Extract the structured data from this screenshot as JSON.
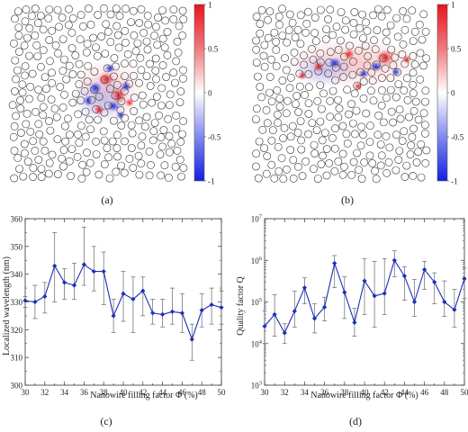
{
  "figure": {
    "panels": [
      {
        "label": "(a)",
        "type": "field-map",
        "colorbar": {
          "ticks": [
            "1",
            "0.5",
            "0",
            "-0.5",
            "-1"
          ],
          "values": [
            1,
            0.5,
            0,
            -0.5,
            -1
          ]
        },
        "colors": {
          "positive": "#e8141b",
          "negative": "#1020e0",
          "zero": "#ffffff"
        }
      },
      {
        "label": "(b)",
        "type": "field-map",
        "colorbar": {
          "ticks": [
            "1",
            "0.5",
            "0",
            "-0.5",
            "-1"
          ],
          "values": [
            1,
            0.5,
            0,
            -0.5,
            -1
          ]
        },
        "colors": {
          "positive": "#e8141b",
          "negative": "#1020e0",
          "zero": "#ffffff"
        }
      }
    ]
  },
  "chart_data": [
    {
      "label": "(c)",
      "type": "line",
      "xlabel": "Nanowire filling factor Φ (%)",
      "ylabel": "Localized wavelength (nm)",
      "xlim": [
        30,
        50
      ],
      "ylim": [
        300,
        360
      ],
      "xticks": [
        30,
        32,
        34,
        36,
        38,
        40,
        42,
        44,
        46,
        48,
        50
      ],
      "yticks": [
        300,
        310,
        320,
        330,
        340,
        350,
        360
      ],
      "grid": false,
      "color": "#1c2fb5",
      "series": [
        {
          "x": [
            30,
            31,
            32,
            33,
            34,
            35,
            36,
            37,
            38,
            39,
            40,
            41,
            42,
            43,
            44,
            45,
            46,
            47,
            48,
            49,
            50
          ],
          "y": [
            330.5,
            330,
            332,
            343,
            337,
            336,
            343.5,
            341,
            341,
            325,
            333,
            331,
            334,
            326,
            325.5,
            326.5,
            326,
            316.5,
            327,
            329,
            328
          ],
          "err_low": [
            328,
            324,
            326,
            330,
            331,
            331,
            336,
            334,
            329,
            319,
            323,
            319,
            325,
            322,
            321,
            322,
            319,
            309,
            321,
            322,
            322
          ],
          "err_high": [
            332,
            336,
            337,
            355,
            342,
            344,
            357,
            350,
            348,
            331,
            341,
            339,
            339,
            331,
            331,
            335,
            333,
            322,
            333,
            335,
            334
          ]
        }
      ]
    },
    {
      "label": "(d)",
      "type": "line",
      "xlabel": "Nanowire filling factor Φ (%)",
      "ylabel": "Quality factor Q",
      "xlim": [
        30,
        50
      ],
      "ylim": [
        1000,
        10000000
      ],
      "yscale": "log",
      "xticks": [
        30,
        32,
        34,
        36,
        38,
        40,
        42,
        44,
        46,
        48,
        50
      ],
      "yticks": [
        1000,
        10000,
        100000,
        1000000,
        10000000
      ],
      "ytick_labels": [
        {
          "base": "10",
          "exp": "3"
        },
        {
          "base": "10",
          "exp": "4"
        },
        {
          "base": "10",
          "exp": "5"
        },
        {
          "base": "10",
          "exp": "6"
        },
        {
          "base": "10",
          "exp": "7"
        }
      ],
      "grid": false,
      "color": "#1c2fb5",
      "series": [
        {
          "x": [
            30,
            31,
            32,
            33,
            34,
            35,
            36,
            37,
            38,
            39,
            40,
            41,
            42,
            43,
            44,
            45,
            46,
            47,
            48,
            49,
            50
          ],
          "y": [
            26000,
            50000,
            18000,
            60000,
            220000,
            40000,
            75000,
            850000,
            170000,
            32000,
            320000,
            140000,
            160000,
            1000000,
            420000,
            100000,
            600000,
            300000,
            100000,
            65000,
            360000
          ],
          "err_low": [
            10000,
            15000,
            10000,
            25000,
            90000,
            18000,
            35000,
            220000,
            40000,
            15000,
            50000,
            25000,
            50000,
            400000,
            110000,
            45000,
            200000,
            90000,
            45000,
            25000,
            120000
          ],
          "err_high": [
            60000,
            150000,
            30000,
            180000,
            380000,
            90000,
            130000,
            1300000,
            400000,
            70000,
            1100000,
            950000,
            1100000,
            1700000,
            700000,
            350000,
            950000,
            500000,
            320000,
            200000,
            650000
          ]
        }
      ]
    }
  ]
}
